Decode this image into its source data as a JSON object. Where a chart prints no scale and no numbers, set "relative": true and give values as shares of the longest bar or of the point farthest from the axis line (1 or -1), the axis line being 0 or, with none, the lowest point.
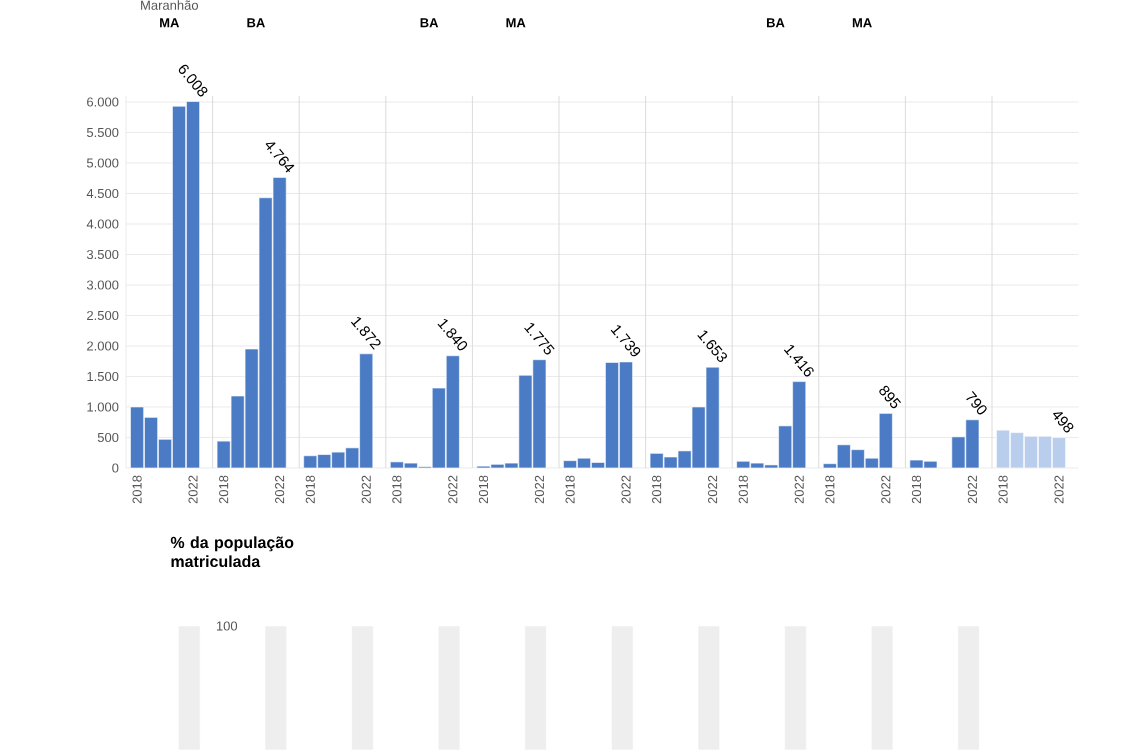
{
  "chart_data": [
    {
      "type": "bar",
      "title": "Maranhão",
      "subtitle": "MA",
      "categories": [
        "2018",
        null,
        null,
        null,
        "2022"
      ],
      "values": [
        1000,
        830,
        470,
        5930,
        6008
      ],
      "value_labels": [
        null,
        null,
        null,
        null,
        "6.008"
      ],
      "color": "#4a7bc4",
      "ylim": [
        0,
        6100
      ],
      "yticks": [
        0,
        500,
        {
          "value": 1000,
          "label": "1.000"
        },
        {
          "value": 1500,
          "label": "1.500"
        },
        {
          "value": 2000,
          "label": "2.000"
        },
        {
          "value": 2500,
          "label": "2.500"
        },
        {
          "value": 3000,
          "label": "3.000"
        },
        {
          "value": 3500,
          "label": "3.500"
        },
        {
          "value": 4000,
          "label": "4.000"
        },
        {
          "value": 4500,
          "label": "4.500"
        },
        {
          "value": 5000,
          "label": "5.000"
        },
        {
          "value": 5500,
          "label": "5.500"
        },
        {
          "value": 6000,
          "label": "6.000"
        }
      ],
      "grid": "y"
    },
    {
      "type": "bar",
      "subtitle": "BA",
      "categories": [
        "2018",
        null,
        null,
        null,
        "2022"
      ],
      "values": [
        440,
        1180,
        1950,
        4430,
        4764
      ],
      "value_labels": [
        null,
        null,
        null,
        null,
        "4.764"
      ],
      "color": "#4a7bc4",
      "ylim": [
        0,
        6100
      ],
      "yticks": [
        0,
        500,
        1000,
        1500,
        2000,
        2500,
        3000,
        3500,
        4000,
        4500,
        5000,
        5500,
        6000
      ],
      "grid": "y",
      "tick_labels": "x"
    },
    {
      "type": "bar",
      "categories": [
        "2018",
        null,
        null,
        null,
        "2022"
      ],
      "values": [
        200,
        220,
        260,
        330,
        1872
      ],
      "value_labels": [
        null,
        null,
        null,
        null,
        "1.872"
      ],
      "color": "#4a7bc4",
      "ylim": [
        0,
        6100
      ],
      "yticks": [
        0,
        500,
        1000,
        1500,
        2000,
        2500,
        3000,
        3500,
        4000,
        4500,
        5000,
        5500,
        6000
      ],
      "grid": "y",
      "tick_labels": "x"
    },
    {
      "type": "bar",
      "subtitle": "BA",
      "categories": [
        "2018",
        null,
        null,
        null,
        "2022"
      ],
      "values": [
        100,
        80,
        20,
        1310,
        1840
      ],
      "value_labels": [
        null,
        null,
        null,
        null,
        "1.840"
      ],
      "color": "#4a7bc4",
      "ylim": [
        0,
        6100
      ],
      "yticks": [
        0,
        500,
        1000,
        1500,
        2000,
        2500,
        3000,
        3500,
        4000,
        4500,
        5000,
        5500,
        6000
      ],
      "grid": "y",
      "tick_labels": "x"
    },
    {
      "type": "bar",
      "subtitle": "MA",
      "categories": [
        "2018",
        null,
        null,
        null,
        "2022"
      ],
      "values": [
        30,
        60,
        80,
        1520,
        1775
      ],
      "value_labels": [
        null,
        null,
        null,
        null,
        "1.775"
      ],
      "color": "#4a7bc4",
      "ylim": [
        0,
        6100
      ],
      "yticks": [
        0,
        500,
        1000,
        1500,
        2000,
        2500,
        3000,
        3500,
        4000,
        4500,
        5000,
        5500,
        6000
      ],
      "grid": "y",
      "tick_labels": "x"
    },
    {
      "type": "bar",
      "categories": [
        "2018",
        null,
        null,
        null,
        "2022"
      ],
      "values": [
        120,
        160,
        90,
        1730,
        1739
      ],
      "value_labels": [
        null,
        null,
        null,
        null,
        "1.739"
      ],
      "color": "#4a7bc4",
      "ylim": [
        0,
        6100
      ],
      "yticks": [
        0,
        500,
        1000,
        1500,
        2000,
        2500,
        3000,
        3500,
        4000,
        4500,
        5000,
        5500,
        6000
      ],
      "grid": "y",
      "tick_labels": "x"
    },
    {
      "type": "bar",
      "categories": [
        "2018",
        null,
        null,
        null,
        "2022"
      ],
      "values": [
        240,
        180,
        280,
        1000,
        1653
      ],
      "value_labels": [
        null,
        null,
        null,
        null,
        "1.653"
      ],
      "color": "#4a7bc4",
      "ylim": [
        0,
        6100
      ],
      "yticks": [
        0,
        500,
        1000,
        1500,
        2000,
        2500,
        3000,
        3500,
        4000,
        4500,
        5000,
        5500,
        6000
      ],
      "grid": "y",
      "tick_labels": "x"
    },
    {
      "type": "bar",
      "subtitle": "BA",
      "categories": [
        "2018",
        null,
        null,
        null,
        "2022"
      ],
      "values": [
        110,
        80,
        50,
        690,
        1416
      ],
      "value_labels": [
        null,
        null,
        null,
        null,
        "1.416"
      ],
      "color": "#4a7bc4",
      "ylim": [
        0,
        6100
      ],
      "yticks": [
        0,
        500,
        1000,
        1500,
        2000,
        2500,
        3000,
        3500,
        4000,
        4500,
        5000,
        5500,
        6000
      ],
      "grid": "y",
      "tick_labels": "x"
    },
    {
      "type": "bar",
      "subtitle": "MA",
      "categories": [
        "2018",
        null,
        null,
        null,
        "2022"
      ],
      "values": [
        70,
        380,
        300,
        160,
        895
      ],
      "value_labels": [
        null,
        null,
        null,
        null,
        "895"
      ],
      "color": "#4a7bc4",
      "ylim": [
        0,
        6100
      ],
      "yticks": [
        0,
        500,
        1000,
        1500,
        2000,
        2500,
        3000,
        3500,
        4000,
        4500,
        5000,
        5500,
        6000
      ],
      "grid": "y",
      "tick_labels": "x"
    },
    {
      "type": "bar",
      "categories": [
        "2018",
        null,
        null,
        null,
        "2022"
      ],
      "values": [
        130,
        110,
        null,
        510,
        790
      ],
      "value_labels": [
        null,
        null,
        null,
        null,
        "790"
      ],
      "color": "#4a7bc4",
      "ylim": [
        0,
        6100
      ],
      "yticks": [
        0,
        500,
        1000,
        1500,
        2000,
        2500,
        3000,
        3500,
        4000,
        4500,
        5000,
        5500,
        6000
      ],
      "grid": "y",
      "tick_labels": "x"
    },
    {
      "type": "bar",
      "categories": [
        "2018",
        null,
        null,
        null,
        "2022"
      ],
      "values": [
        620,
        580,
        520,
        520,
        498
      ],
      "value_labels": [
        null,
        null,
        null,
        null,
        "498"
      ],
      "color": "#b9cdec",
      "ylim": [
        0,
        6100
      ],
      "yticks": [
        0,
        500,
        1000,
        1500,
        2000,
        2500,
        3000,
        3500,
        4000,
        4500,
        5000,
        5500,
        6000
      ],
      "grid": "y",
      "tick_labels": "x"
    },
    {
      "type": "bar",
      "relative": true,
      "ylabel": "% da população matriculada",
      "annotations": [
        "100"
      ],
      "categories": [
        null,
        null,
        null,
        null,
        null,
        null,
        null,
        null,
        null,
        null
      ],
      "values": [
        1,
        1,
        1,
        1,
        1,
        1,
        1,
        1,
        1,
        1
      ],
      "color": "#eeeeee"
    }
  ]
}
